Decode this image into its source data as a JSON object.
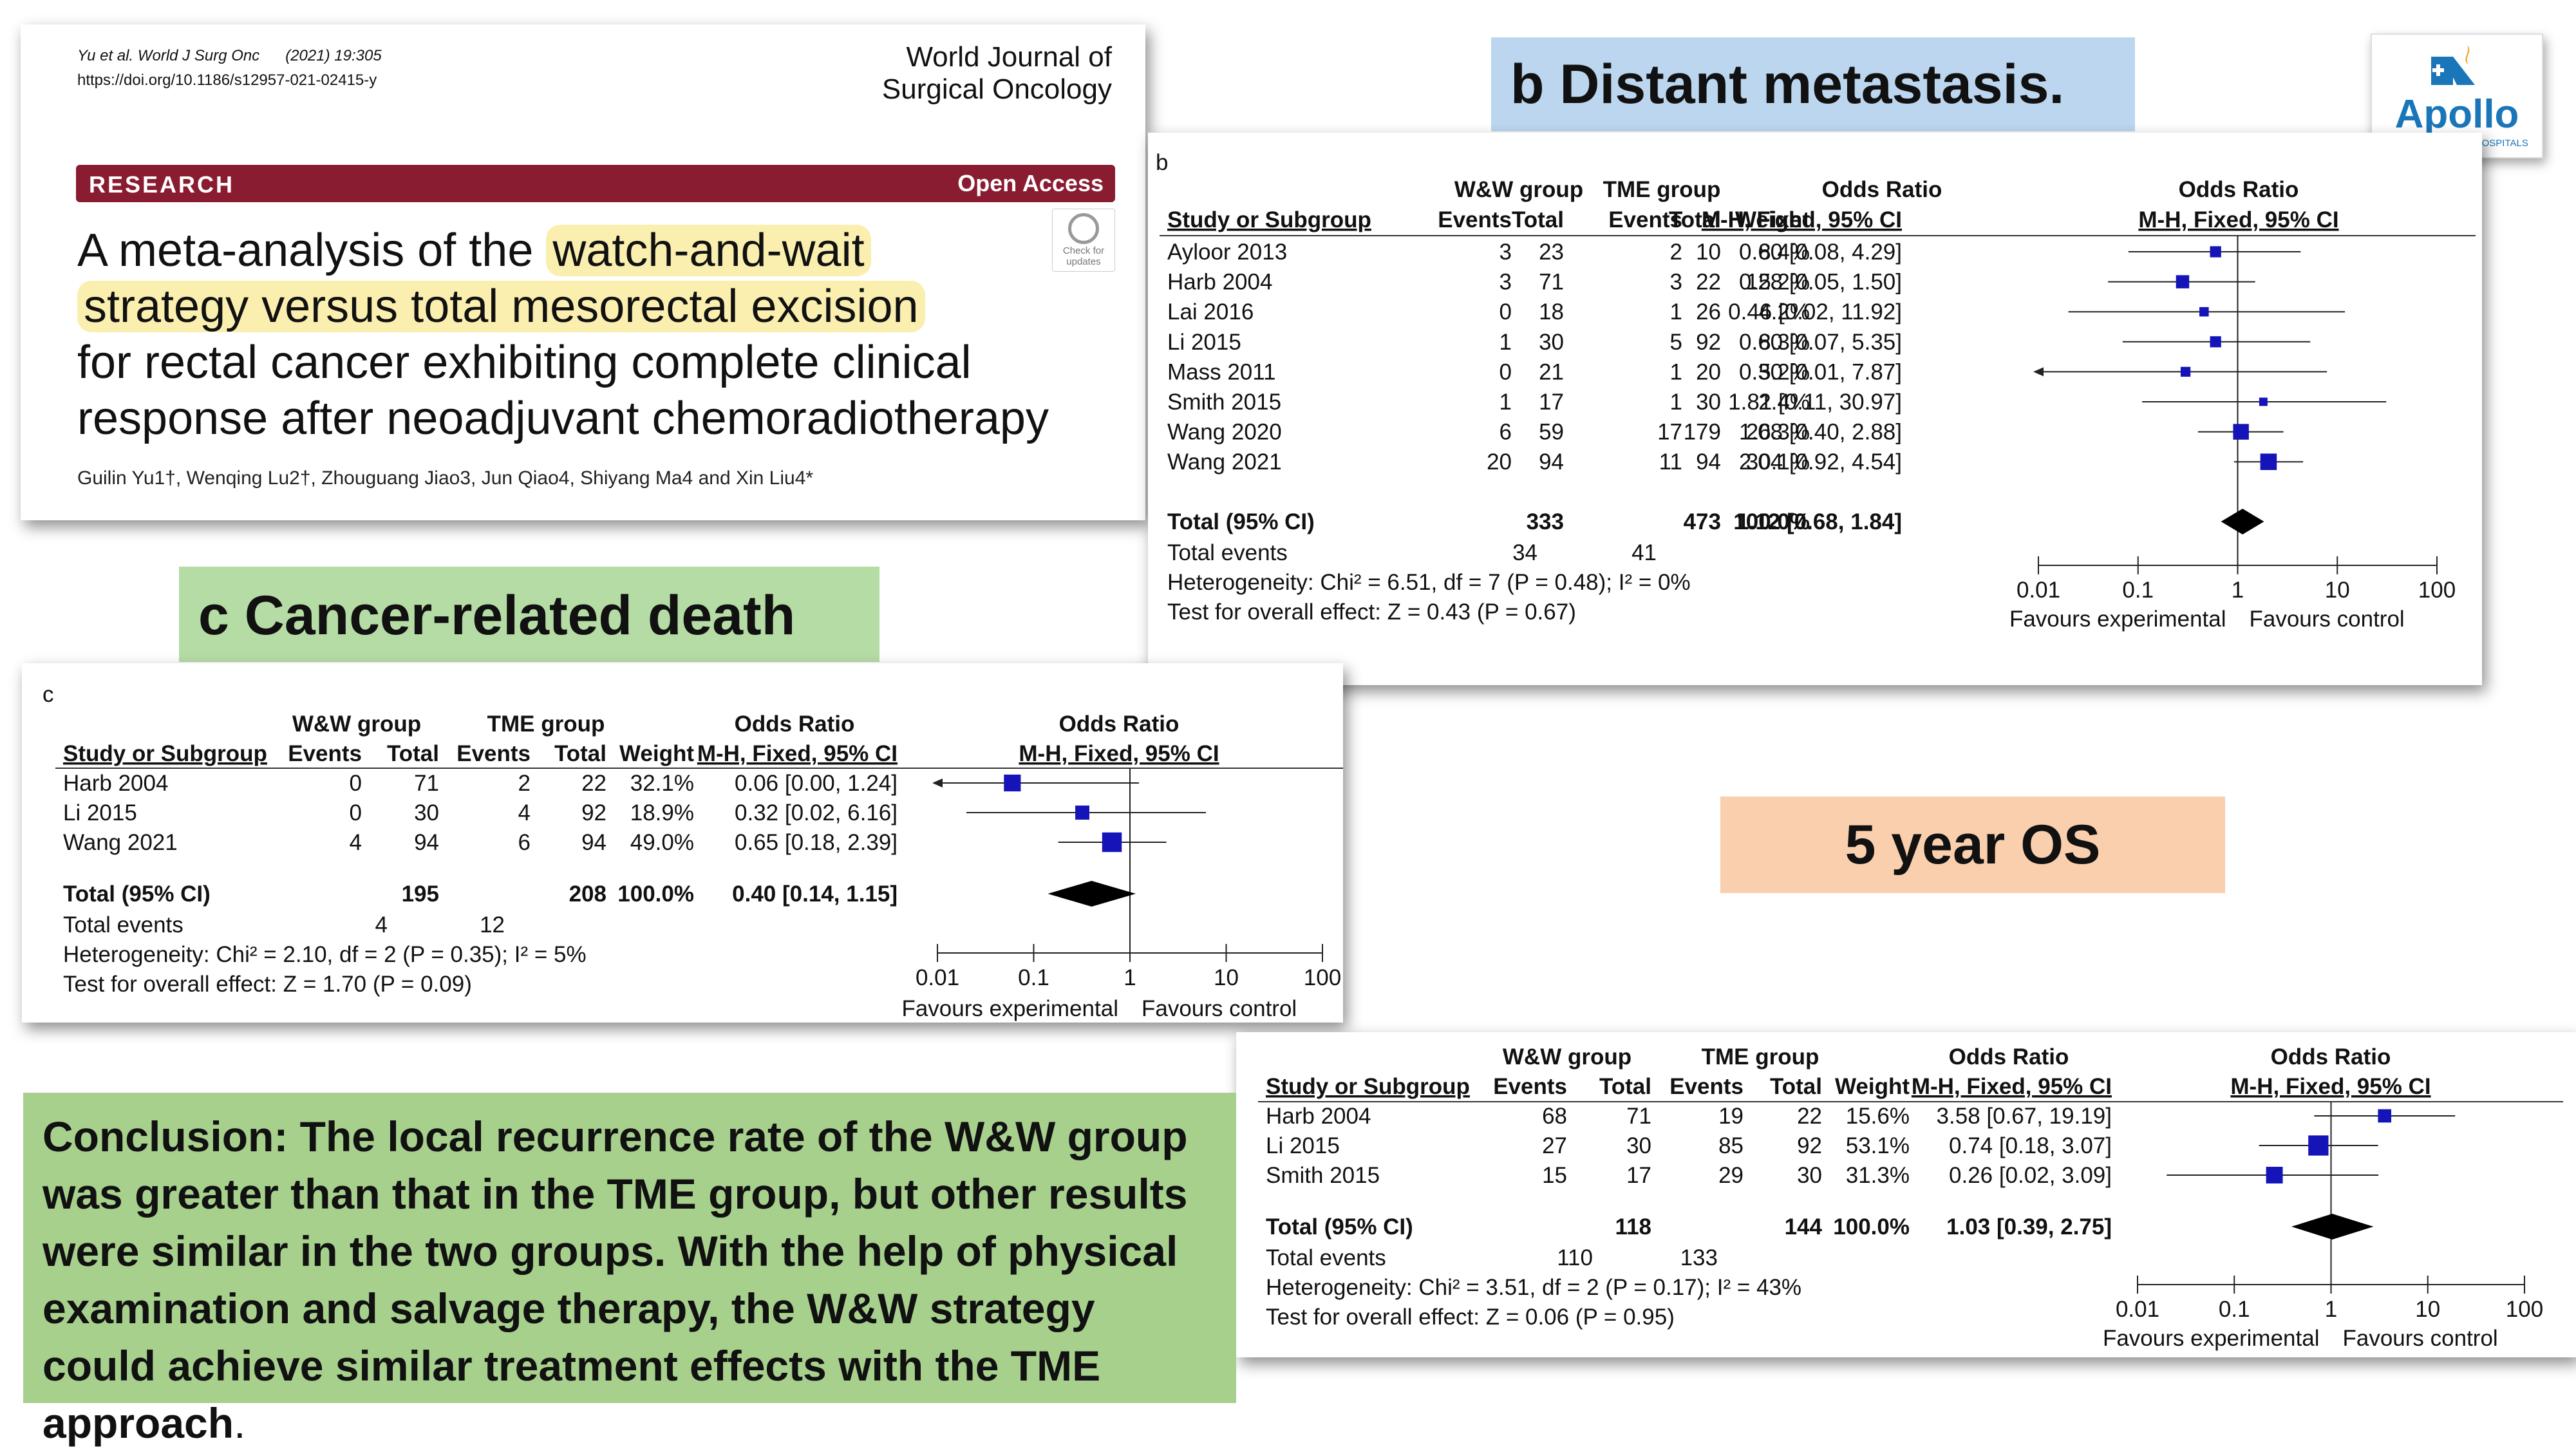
{
  "paper": {
    "authors_short": "Yu et al. World J Surg Onc",
    "citation": "(2021) 19:305",
    "doi": "https://doi.org/10.1186/s12957-021-02415-y",
    "journal_line1": "World Journal of",
    "journal_line2": "Surgical Oncology",
    "section": "RESEARCH",
    "access": "Open Access",
    "title_hl1": "watch-and-wait",
    "title_pre": "A meta-analysis of the",
    "title_hl2": "strategy versus total mesorectal excision",
    "title_rest1": "for rectal cancer exhibiting complete clinical",
    "title_rest2": "response after neoadjuvant chemoradiotherapy",
    "authors": "Guilin Yu1†, Wenqing Lu2†, Zhouguang Jiao3, Jun Qiao4, Shiyang Ma4 and Xin Liu4*",
    "check_updates": "Check for updates"
  },
  "labels": {
    "b": "b Distant metastasis.",
    "c": "c Cancer-related death",
    "os": "5 year OS"
  },
  "logo": {
    "name": "Apollo",
    "sub": "MULTI SPECIALITY HOSPITALS"
  },
  "conclusion": {
    "main": "Conclusion: The local recurrence rate of the W&W group was greater than that in the TME group, but other results were similar in the two groups. With the help of physical examination and salvage therapy, the W&W strategy could achieve similar treatment effects with the TME approach",
    "end": "."
  },
  "header_text": {
    "ww": "W&W group",
    "tme": "TME group",
    "or": "Odds Ratio",
    "study": "Study or Subgroup",
    "events": "Events",
    "total": "Total",
    "weight": "Weight",
    "mh": "M-H, Fixed, 95% CI",
    "fav_exp": "Favours experimental",
    "fav_ctrl": "Favours control",
    "total_label": "Total (95% CI)",
    "total_events": "Total events"
  },
  "chart_data": [
    {
      "type": "forest",
      "panel_letter": "b",
      "axis_ticks": [
        "0.01",
        "0.1",
        "1",
        "10",
        "100"
      ],
      "xlim": [
        0.01,
        100
      ],
      "x_scale": "log",
      "studies": [
        {
          "name": "Ayloor 2013",
          "ww_events": 3,
          "ww_total": 23,
          "tme_events": 2,
          "tme_total": 10,
          "weight": "8.4%",
          "or": 0.6,
          "lo": 0.08,
          "hi": 4.29,
          "ci": "0.60 [0.08, 4.29]"
        },
        {
          "name": "Harb 2004",
          "ww_events": 3,
          "ww_total": 71,
          "tme_events": 3,
          "tme_total": 22,
          "weight": "15.2%",
          "or": 0.28,
          "lo": 0.05,
          "hi": 1.5,
          "ci": "0.28 [0.05, 1.50]"
        },
        {
          "name": "Lai 2016",
          "ww_events": 0,
          "ww_total": 18,
          "tme_events": 1,
          "tme_total": 26,
          "weight": "4.2%",
          "or": 0.46,
          "lo": 0.02,
          "hi": 11.92,
          "ci": "0.46 [0.02, 11.92]"
        },
        {
          "name": "Li 2015",
          "ww_events": 1,
          "ww_total": 30,
          "tme_events": 5,
          "tme_total": 92,
          "weight": "8.3%",
          "or": 0.6,
          "lo": 0.07,
          "hi": 5.35,
          "ci": "0.60 [0.07, 5.35]"
        },
        {
          "name": "Mass 2011",
          "ww_events": 0,
          "ww_total": 21,
          "tme_events": 1,
          "tme_total": 20,
          "weight": "5.2%",
          "or": 0.3,
          "lo": 0.01,
          "hi": 7.87,
          "ci": "0.30 [0.01, 7.87]"
        },
        {
          "name": "Smith 2015",
          "ww_events": 1,
          "ww_total": 17,
          "tme_events": 1,
          "tme_total": 30,
          "weight": "2.4%",
          "or": 1.81,
          "lo": 0.11,
          "hi": 30.97,
          "ci": "1.81 [0.11, 30.97]"
        },
        {
          "name": "Wang 2020",
          "ww_events": 6,
          "ww_total": 59,
          "tme_events": 17,
          "tme_total": 179,
          "weight": "26.3%",
          "or": 1.08,
          "lo": 0.4,
          "hi": 2.88,
          "ci": "1.08 [0.40, 2.88]"
        },
        {
          "name": "Wang 2021",
          "ww_events": 20,
          "ww_total": 94,
          "tme_events": 11,
          "tme_total": 94,
          "weight": "30.1%",
          "or": 2.04,
          "lo": 0.92,
          "hi": 4.54,
          "ci": "2.04 [0.92, 4.54]"
        }
      ],
      "total": {
        "ww_total": 333,
        "tme_total": 473,
        "weight": "100.0%",
        "or": 1.12,
        "lo": 0.68,
        "hi": 1.84,
        "ci": "1.12 [0.68, 1.84]",
        "ww_events": 34,
        "tme_events": 41
      },
      "heterogeneity": "Heterogeneity: Chi² = 6.51, df = 7 (P = 0.48); I² = 0%",
      "overall_effect": "Test for overall effect: Z = 0.43 (P = 0.67)"
    },
    {
      "type": "forest",
      "panel_letter": "c",
      "axis_ticks": [
        "0.01",
        "0.1",
        "1",
        "10",
        "100"
      ],
      "xlim": [
        0.01,
        100
      ],
      "x_scale": "log",
      "studies": [
        {
          "name": "Harb 2004",
          "ww_events": 0,
          "ww_total": 71,
          "tme_events": 2,
          "tme_total": 22,
          "weight": "32.1%",
          "or": 0.06,
          "lo": 0.0,
          "hi": 1.24,
          "ci": "0.06 [0.00, 1.24]"
        },
        {
          "name": "Li 2015",
          "ww_events": 0,
          "ww_total": 30,
          "tme_events": 4,
          "tme_total": 92,
          "weight": "18.9%",
          "or": 0.32,
          "lo": 0.02,
          "hi": 6.16,
          "ci": "0.32 [0.02, 6.16]"
        },
        {
          "name": "Wang 2021",
          "ww_events": 4,
          "ww_total": 94,
          "tme_events": 6,
          "tme_total": 94,
          "weight": "49.0%",
          "or": 0.65,
          "lo": 0.18,
          "hi": 2.39,
          "ci": "0.65 [0.18, 2.39]"
        }
      ],
      "total": {
        "ww_total": 195,
        "tme_total": 208,
        "weight": "100.0%",
        "or": 0.4,
        "lo": 0.14,
        "hi": 1.15,
        "ci": "0.40 [0.14, 1.15]",
        "ww_events": 4,
        "tme_events": 12
      },
      "heterogeneity": "Heterogeneity: Chi² = 2.10, df = 2 (P = 0.35); I² = 5%",
      "overall_effect": "Test for overall effect: Z = 1.70 (P = 0.09)"
    },
    {
      "type": "forest",
      "panel_letter": "",
      "axis_ticks": [
        "0.01",
        "0.1",
        "1",
        "10",
        "100"
      ],
      "xlim": [
        0.01,
        100
      ],
      "x_scale": "log",
      "studies": [
        {
          "name": "Harb 2004",
          "ww_events": 68,
          "ww_total": 71,
          "tme_events": 19,
          "tme_total": 22,
          "weight": "15.6%",
          "or": 3.58,
          "lo": 0.67,
          "hi": 19.19,
          "ci": "3.58 [0.67, 19.19]"
        },
        {
          "name": "Li 2015",
          "ww_events": 27,
          "ww_total": 30,
          "tme_events": 85,
          "tme_total": 92,
          "weight": "53.1%",
          "or": 0.74,
          "lo": 0.18,
          "hi": 3.07,
          "ci": "0.74 [0.18, 3.07]"
        },
        {
          "name": "Smith 2015",
          "ww_events": 15,
          "ww_total": 17,
          "tme_events": 29,
          "tme_total": 30,
          "weight": "31.3%",
          "or": 0.26,
          "lo": 0.02,
          "hi": 3.09,
          "ci": "0.26 [0.02, 3.09]"
        }
      ],
      "total": {
        "ww_total": 118,
        "tme_total": 144,
        "weight": "100.0%",
        "or": 1.03,
        "lo": 0.39,
        "hi": 2.75,
        "ci": "1.03 [0.39, 2.75]",
        "ww_events": 110,
        "tme_events": 133
      },
      "heterogeneity": "Heterogeneity: Chi² = 3.51, df = 2 (P = 0.17); I² = 43%",
      "overall_effect": "Test for overall effect: Z = 0.06 (P = 0.95)"
    }
  ]
}
